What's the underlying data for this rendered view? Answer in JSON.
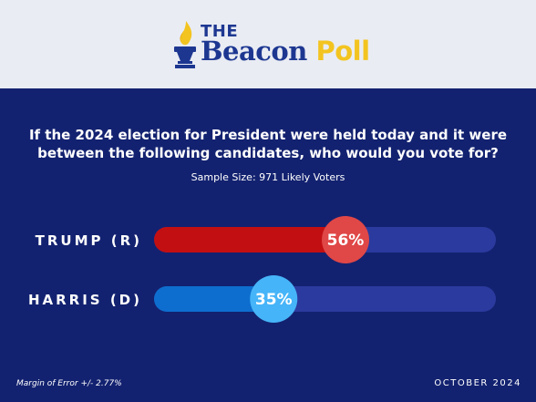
{
  "brand": {
    "prefix": "THE",
    "name_part1": "Beacon",
    "name_part2": "Poll"
  },
  "colors": {
    "header_bg": "#e9ecf3",
    "main_bg": "#132270",
    "track": "#2b3a9e",
    "trump_fill": "#c20f12",
    "trump_bubble": "#e04747",
    "harris_fill": "#0d6ecf",
    "harris_bubble": "#46b4f8"
  },
  "question": "If the 2024 election for President were held today and it were between the following candidates, who would you vote for?",
  "sample_size": "Sample Size: 971 Likely Voters",
  "chart_data": {
    "type": "bar",
    "orientation": "horizontal",
    "categories": [
      "TRUMP (R)",
      "HARRIS (D)"
    ],
    "values": [
      56,
      35
    ],
    "value_labels": [
      "56%",
      "35%"
    ],
    "xlim": [
      0,
      100
    ],
    "title": "",
    "xlabel": "",
    "ylabel": ""
  },
  "footer": {
    "margin_of_error": "Margin of Error +/- 2.77%",
    "date": "OCTOBER 2024"
  }
}
